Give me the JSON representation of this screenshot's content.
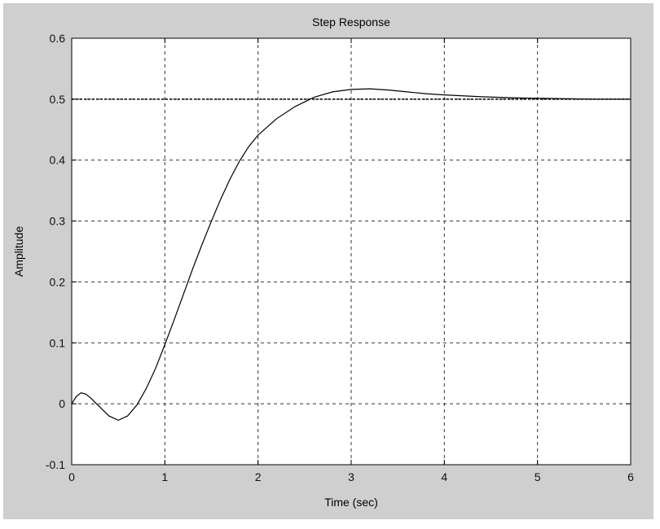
{
  "chart_data": {
    "type": "line",
    "title": "Step Response",
    "xlabel": "Time (sec)",
    "ylabel": "Amplitude",
    "xlim": [
      0,
      6
    ],
    "ylim": [
      -0.1,
      0.6
    ],
    "xticks": [
      0,
      1,
      2,
      3,
      4,
      5,
      6
    ],
    "yticks": [
      -0.1,
      0,
      0.1,
      0.2,
      0.3,
      0.4,
      0.5,
      0.6
    ],
    "xtick_labels": [
      "0",
      "1",
      "2",
      "3",
      "4",
      "5",
      "6"
    ],
    "ytick_labels": [
      "-0.1",
      "0",
      "0.1",
      "0.2",
      "0.3",
      "0.4",
      "0.5",
      "0.6"
    ],
    "grid": true,
    "reference_line": {
      "y": 0.5,
      "style": "dotted"
    },
    "series": [
      {
        "x": [
          0,
          0.05,
          0.1,
          0.15,
          0.2,
          0.3,
          0.4,
          0.5,
          0.6,
          0.7,
          0.8,
          0.9,
          1.0,
          1.1,
          1.2,
          1.3,
          1.4,
          1.5,
          1.6,
          1.7,
          1.8,
          1.9,
          2.0,
          2.2,
          2.4,
          2.6,
          2.8,
          3.0,
          3.2,
          3.4,
          3.6,
          3.8,
          4.0,
          4.4,
          4.8,
          5.2,
          5.6,
          6.0
        ],
        "y": [
          0,
          0.012,
          0.018,
          0.016,
          0.01,
          -0.005,
          -0.02,
          -0.027,
          -0.02,
          -0.002,
          0.025,
          0.058,
          0.097,
          0.138,
          0.18,
          0.222,
          0.262,
          0.3,
          0.336,
          0.369,
          0.398,
          0.422,
          0.441,
          0.468,
          0.488,
          0.503,
          0.512,
          0.516,
          0.517,
          0.515,
          0.512,
          0.509,
          0.507,
          0.504,
          0.502,
          0.501,
          0.5,
          0.5
        ]
      }
    ]
  }
}
